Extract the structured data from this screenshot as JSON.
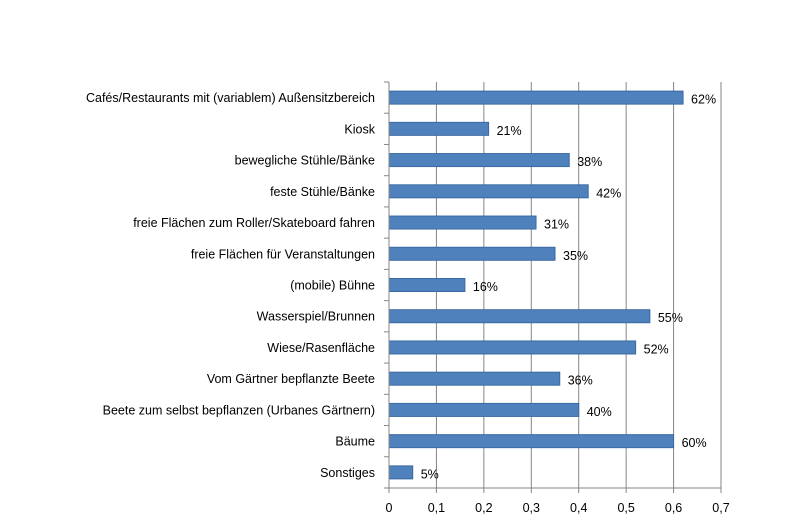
{
  "chart_data": {
    "type": "bar",
    "orientation": "horizontal",
    "categories": [
      "Cafés/Restaurants mit (variablem) Außensitzbereich",
      "Kiosk",
      "bewegliche Stühle/Bänke",
      "feste Stühle/Bänke",
      "freie Flächen zum Roller/Skateboard fahren",
      "freie Flächen für Veranstaltungen",
      "(mobile) Bühne",
      "Wasserspiel/Brunnen",
      "Wiese/Rasenfläche",
      "Vom Gärtner bepflanzte Beete",
      "Beete zum selbst bepflanzen (Urbanes Gärtnern)",
      "Bäume",
      "Sonstiges"
    ],
    "values": [
      0.62,
      0.21,
      0.38,
      0.42,
      0.31,
      0.35,
      0.16,
      0.55,
      0.52,
      0.36,
      0.4,
      0.6,
      0.05
    ],
    "data_labels": [
      "62%",
      "21%",
      "38%",
      "42%",
      "31%",
      "35%",
      "16%",
      "55%",
      "52%",
      "36%",
      "40%",
      "60%",
      "5%"
    ],
    "xlim": [
      0,
      0.7
    ],
    "x_ticks": [
      "0",
      "0,1",
      "0,2",
      "0,3",
      "0,4",
      "0,5",
      "0,6",
      "0,7"
    ],
    "title": "",
    "xlabel": "",
    "ylabel": "",
    "grid": "vertical",
    "legend": "none",
    "colors": {
      "bar": "#4f81bd",
      "bar_border": "#3a6aa3",
      "grid": "#868686"
    }
  }
}
